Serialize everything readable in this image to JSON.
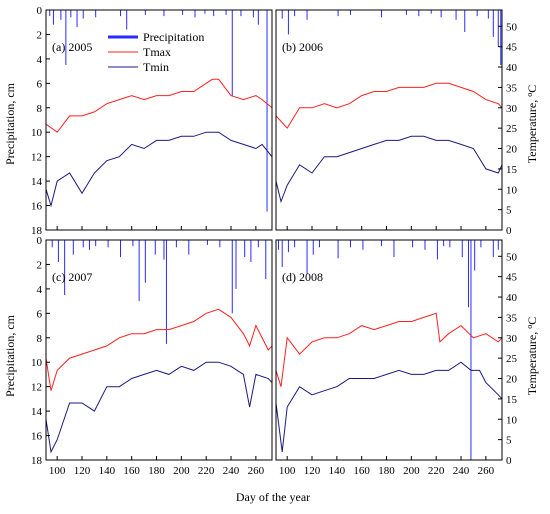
{
  "chart_data": {
    "type": "line",
    "xlabel": "Day of the year",
    "ylabel_left": "Precipitation, cm",
    "ylabel_right": "Temperature, °C",
    "ylabel_right_parts": [
      "Temperature, ",
      "o",
      "C"
    ],
    "xlim": [
      91,
      273
    ],
    "x_ticks": [
      100,
      120,
      140,
      160,
      180,
      200,
      220,
      240,
      260
    ],
    "precip_lim": [
      0,
      18
    ],
    "precip_ticks": [
      0,
      2,
      4,
      6,
      8,
      10,
      12,
      14,
      16,
      18
    ],
    "temp_lim": [
      0,
      54
    ],
    "temp_ticks": [
      0,
      5,
      10,
      15,
      20,
      25,
      30,
      35,
      40,
      45,
      50
    ],
    "colors": {
      "precipitation": "#2b2bff",
      "tmax": "#ff2020",
      "tmin": "#1a1a80"
    },
    "legend": [
      {
        "name": "Precipitation",
        "color": "#2b2bff"
      },
      {
        "name": "Tmax",
        "color": "#ff2020"
      },
      {
        "name": "Tmin",
        "color": "#1a1a80"
      }
    ],
    "panels": [
      {
        "label": "(a) 2005",
        "tmax": [
          [
            91,
            26
          ],
          [
            100,
            24
          ],
          [
            110,
            28
          ],
          [
            120,
            28
          ],
          [
            130,
            29
          ],
          [
            140,
            31
          ],
          [
            150,
            32
          ],
          [
            160,
            33
          ],
          [
            170,
            32
          ],
          [
            180,
            33
          ],
          [
            190,
            33
          ],
          [
            200,
            34
          ],
          [
            210,
            34
          ],
          [
            220,
            36
          ],
          [
            225,
            37
          ],
          [
            230,
            37
          ],
          [
            240,
            33
          ],
          [
            250,
            32
          ],
          [
            260,
            33
          ],
          [
            265,
            32
          ],
          [
            273,
            30
          ]
        ],
        "tmin": [
          [
            91,
            10
          ],
          [
            95,
            6
          ],
          [
            100,
            12
          ],
          [
            110,
            14
          ],
          [
            120,
            9
          ],
          [
            130,
            14
          ],
          [
            140,
            17
          ],
          [
            150,
            18
          ],
          [
            160,
            21
          ],
          [
            170,
            20
          ],
          [
            180,
            22
          ],
          [
            190,
            22
          ],
          [
            200,
            23
          ],
          [
            210,
            23
          ],
          [
            220,
            24
          ],
          [
            230,
            24
          ],
          [
            240,
            22
          ],
          [
            250,
            21
          ],
          [
            260,
            20
          ],
          [
            265,
            21
          ],
          [
            273,
            18
          ]
        ],
        "precipitation": [
          [
            94,
            0.5
          ],
          [
            97,
            1.2
          ],
          [
            103,
            0.8
          ],
          [
            107,
            4.5
          ],
          [
            111,
            0.6
          ],
          [
            116,
            1.4
          ],
          [
            121,
            0.7
          ],
          [
            131,
            0.6
          ],
          [
            151,
            0.5
          ],
          [
            156,
            1.6
          ],
          [
            171,
            0.4
          ],
          [
            186,
            0.5
          ],
          [
            201,
            0.4
          ],
          [
            211,
            0.6
          ],
          [
            219,
            0.3
          ],
          [
            226,
            0.5
          ],
          [
            236,
            0.4
          ],
          [
            241,
            7.0
          ],
          [
            248,
            0.5
          ],
          [
            258,
            0.6
          ],
          [
            262,
            1.2
          ],
          [
            269,
            16.5
          ]
        ]
      },
      {
        "label": "(b) 2006",
        "tmax": [
          [
            91,
            28
          ],
          [
            100,
            25
          ],
          [
            110,
            30
          ],
          [
            120,
            30
          ],
          [
            130,
            31
          ],
          [
            140,
            30
          ],
          [
            150,
            31
          ],
          [
            160,
            33
          ],
          [
            170,
            34
          ],
          [
            180,
            34
          ],
          [
            190,
            35
          ],
          [
            200,
            35
          ],
          [
            210,
            35
          ],
          [
            220,
            36
          ],
          [
            230,
            36
          ],
          [
            240,
            35
          ],
          [
            250,
            34
          ],
          [
            260,
            32
          ],
          [
            270,
            31
          ],
          [
            273,
            30
          ]
        ],
        "tmin": [
          [
            91,
            12
          ],
          [
            95,
            7
          ],
          [
            100,
            11
          ],
          [
            110,
            16
          ],
          [
            120,
            14
          ],
          [
            130,
            18
          ],
          [
            140,
            18
          ],
          [
            150,
            19
          ],
          [
            160,
            20
          ],
          [
            170,
            21
          ],
          [
            180,
            22
          ],
          [
            190,
            22
          ],
          [
            200,
            23
          ],
          [
            210,
            23
          ],
          [
            220,
            22
          ],
          [
            230,
            22
          ],
          [
            240,
            21
          ],
          [
            250,
            20
          ],
          [
            260,
            15
          ],
          [
            270,
            14
          ],
          [
            273,
            16
          ]
        ],
        "precipitation": [
          [
            96,
            0.7
          ],
          [
            101,
            2.0
          ],
          [
            106,
            0.5
          ],
          [
            116,
            0.8
          ],
          [
            141,
            0.5
          ],
          [
            151,
            0.4
          ],
          [
            176,
            0.6
          ],
          [
            196,
            0.4
          ],
          [
            206,
            0.5
          ],
          [
            216,
            0.3
          ],
          [
            224,
            0.6
          ],
          [
            236,
            0.8
          ],
          [
            243,
            1.8
          ],
          [
            253,
            0.5
          ],
          [
            262,
            0.7
          ],
          [
            266,
            2.2
          ],
          [
            270,
            3.0
          ],
          [
            272,
            4.5
          ]
        ]
      },
      {
        "label": "(c) 2007",
        "tmax": [
          [
            91,
            25
          ],
          [
            95,
            17
          ],
          [
            100,
            22
          ],
          [
            110,
            25
          ],
          [
            120,
            26
          ],
          [
            130,
            27
          ],
          [
            140,
            28
          ],
          [
            150,
            30
          ],
          [
            160,
            31
          ],
          [
            170,
            31
          ],
          [
            180,
            32
          ],
          [
            190,
            32
          ],
          [
            200,
            33
          ],
          [
            210,
            34
          ],
          [
            220,
            36
          ],
          [
            230,
            37
          ],
          [
            240,
            35
          ],
          [
            250,
            31
          ],
          [
            255,
            28
          ],
          [
            260,
            33
          ],
          [
            270,
            27
          ],
          [
            273,
            28
          ]
        ],
        "tmin": [
          [
            91,
            10
          ],
          [
            95,
            2
          ],
          [
            100,
            5
          ],
          [
            110,
            14
          ],
          [
            120,
            14
          ],
          [
            130,
            12
          ],
          [
            140,
            18
          ],
          [
            150,
            18
          ],
          [
            160,
            20
          ],
          [
            170,
            21
          ],
          [
            180,
            22
          ],
          [
            190,
            21
          ],
          [
            200,
            23
          ],
          [
            210,
            22
          ],
          [
            220,
            24
          ],
          [
            230,
            24
          ],
          [
            240,
            23
          ],
          [
            250,
            21
          ],
          [
            255,
            13
          ],
          [
            260,
            21
          ],
          [
            270,
            20
          ],
          [
            273,
            19
          ]
        ],
        "precipitation": [
          [
            96,
            0.6
          ],
          [
            101,
            1.8
          ],
          [
            106,
            4.5
          ],
          [
            113,
            1.2
          ],
          [
            121,
            0.6
          ],
          [
            126,
            0.8
          ],
          [
            131,
            0.5
          ],
          [
            141,
            0.6
          ],
          [
            151,
            1.4
          ],
          [
            161,
            0.5
          ],
          [
            166,
            5.0
          ],
          [
            171,
            3.5
          ],
          [
            179,
            1.2
          ],
          [
            186,
            1.6
          ],
          [
            188,
            8.5
          ],
          [
            196,
            0.6
          ],
          [
            206,
            1.2
          ],
          [
            221,
            0.4
          ],
          [
            231,
            0.6
          ],
          [
            241,
            6.0
          ],
          [
            244,
            4.0
          ],
          [
            251,
            1.4
          ],
          [
            256,
            1.8
          ],
          [
            262,
            0.6
          ],
          [
            268,
            3.2
          ]
        ]
      },
      {
        "label": "(d) 2008",
        "tmax": [
          [
            91,
            22
          ],
          [
            95,
            18
          ],
          [
            100,
            30
          ],
          [
            110,
            26
          ],
          [
            120,
            29
          ],
          [
            130,
            30
          ],
          [
            140,
            30
          ],
          [
            150,
            31
          ],
          [
            160,
            33
          ],
          [
            170,
            32
          ],
          [
            180,
            33
          ],
          [
            190,
            34
          ],
          [
            200,
            34
          ],
          [
            210,
            35
          ],
          [
            220,
            36
          ],
          [
            223,
            29
          ],
          [
            230,
            31
          ],
          [
            240,
            33
          ],
          [
            250,
            30
          ],
          [
            260,
            31
          ],
          [
            270,
            29
          ],
          [
            273,
            30
          ]
        ],
        "tmin": [
          [
            91,
            14
          ],
          [
            96,
            2
          ],
          [
            100,
            13
          ],
          [
            110,
            18
          ],
          [
            120,
            16
          ],
          [
            130,
            17
          ],
          [
            140,
            18
          ],
          [
            150,
            20
          ],
          [
            160,
            20
          ],
          [
            170,
            20
          ],
          [
            180,
            21
          ],
          [
            190,
            22
          ],
          [
            200,
            21
          ],
          [
            210,
            21
          ],
          [
            220,
            22
          ],
          [
            230,
            22
          ],
          [
            240,
            24
          ],
          [
            248,
            22
          ],
          [
            255,
            22
          ],
          [
            260,
            19
          ],
          [
            270,
            16
          ],
          [
            273,
            15
          ]
        ],
        "precipitation": [
          [
            93,
            0.8
          ],
          [
            96,
            2.2
          ],
          [
            101,
            1.0
          ],
          [
            106,
            0.6
          ],
          [
            116,
            2.8
          ],
          [
            121,
            1.2
          ],
          [
            126,
            0.6
          ],
          [
            141,
            1.5
          ],
          [
            151,
            0.6
          ],
          [
            161,
            0.8
          ],
          [
            176,
            0.5
          ],
          [
            186,
            1.4
          ],
          [
            201,
            0.6
          ],
          [
            211,
            0.8
          ],
          [
            221,
            1.6
          ],
          [
            226,
            0.5
          ],
          [
            231,
            0.6
          ],
          [
            241,
            1.4
          ],
          [
            246,
            5.5
          ],
          [
            248,
            18.0
          ],
          [
            251,
            2.5
          ],
          [
            256,
            0.6
          ],
          [
            266,
            1.4
          ],
          [
            270,
            0.8
          ]
        ]
      }
    ]
  }
}
